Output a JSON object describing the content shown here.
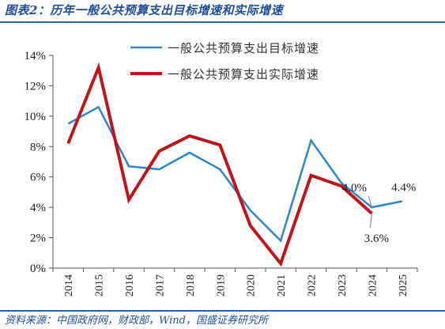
{
  "figure": {
    "title": "图表2：历年一般公共预算支出目标增速和实际增速",
    "source": "资料来源：中国政府网，财政部，Wind，国盛证券研究所"
  },
  "chart_data": {
    "type": "line",
    "title": "",
    "xlabel": "",
    "ylabel": "",
    "x": [
      "2014",
      "2015",
      "2016",
      "2017",
      "2018",
      "2019",
      "2020",
      "2021",
      "2022",
      "2023",
      "2024",
      "2025"
    ],
    "ylim": [
      0,
      14
    ],
    "yticks": [
      "0%",
      "2%",
      "4%",
      "6%",
      "8%",
      "10%",
      "12%",
      "14%"
    ],
    "grid": false,
    "legend_position": "top-center",
    "series": [
      {
        "name": "一般公共预算支出目标增速",
        "color": "#2e86c8",
        "values": [
          9.5,
          10.6,
          6.7,
          6.5,
          7.6,
          6.5,
          3.8,
          1.8,
          8.4,
          5.6,
          4.0,
          4.4
        ]
      },
      {
        "name": "一般公共预算支出实际增速",
        "color": "#c0141c",
        "values": [
          8.2,
          13.2,
          4.5,
          7.7,
          8.7,
          8.1,
          2.8,
          0.3,
          6.1,
          5.4,
          3.6,
          null
        ]
      }
    ],
    "annotations": [
      {
        "text": "4.0%",
        "series": 0,
        "index": 10
      },
      {
        "text": "4.4%",
        "series": 0,
        "index": 11
      },
      {
        "text": "3.6%",
        "series": 1,
        "index": 10
      }
    ]
  }
}
